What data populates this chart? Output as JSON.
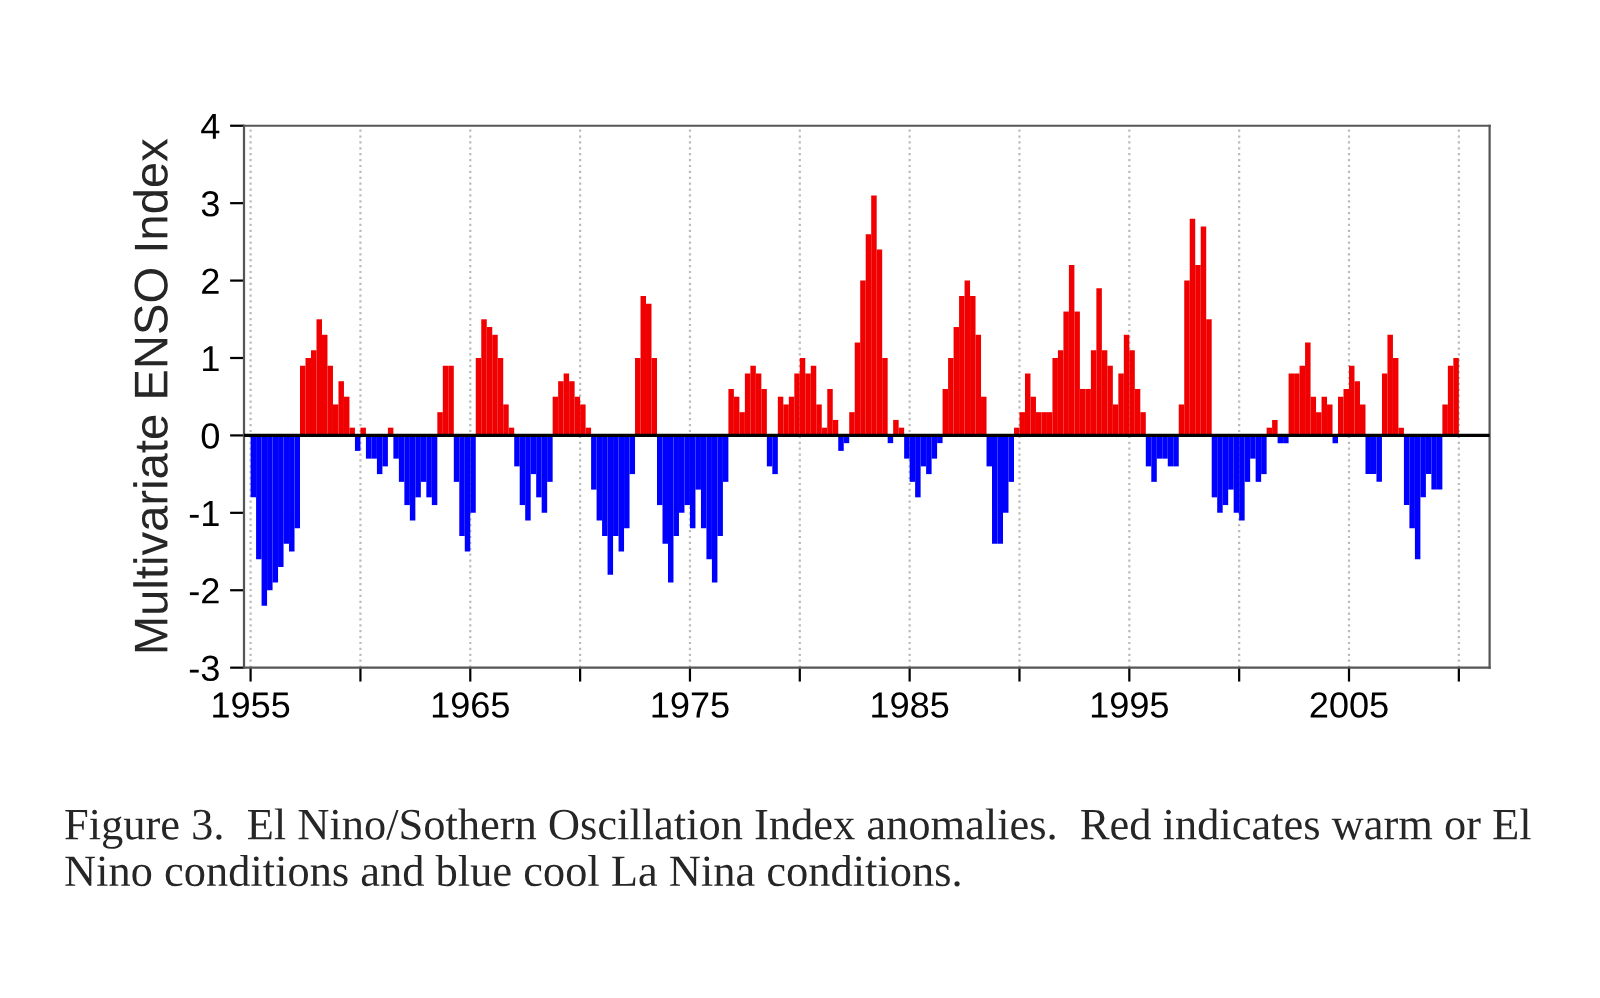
{
  "chart_data": {
    "type": "bar",
    "ylabel": "Multivariate ENSO Index",
    "x": [
      1955,
      1955.25,
      1955.5,
      1955.75,
      1956,
      1956.25,
      1956.5,
      1956.75,
      1957,
      1957.25,
      1957.5,
      1957.75,
      1958,
      1958.25,
      1958.5,
      1958.75,
      1959,
      1959.25,
      1959.5,
      1959.75,
      1960,
      1960.25,
      1960.5,
      1960.75,
      1961,
      1961.25,
      1961.5,
      1961.75,
      1962,
      1962.25,
      1962.5,
      1962.75,
      1963,
      1963.25,
      1963.5,
      1963.75,
      1964,
      1964.25,
      1964.5,
      1964.75,
      1965,
      1965.25,
      1965.5,
      1965.75,
      1966,
      1966.25,
      1966.5,
      1966.75,
      1967,
      1967.25,
      1967.5,
      1967.75,
      1968,
      1968.25,
      1968.5,
      1968.75,
      1969,
      1969.25,
      1969.5,
      1969.75,
      1970,
      1970.25,
      1970.5,
      1970.75,
      1971,
      1971.25,
      1971.5,
      1971.75,
      1972,
      1972.25,
      1972.5,
      1972.75,
      1973,
      1973.25,
      1973.5,
      1973.75,
      1974,
      1974.25,
      1974.5,
      1974.75,
      1975,
      1975.25,
      1975.5,
      1975.75,
      1976,
      1976.25,
      1976.5,
      1976.75,
      1977,
      1977.25,
      1977.5,
      1977.75,
      1978,
      1978.25,
      1978.5,
      1978.75,
      1979,
      1979.25,
      1979.5,
      1979.75,
      1980,
      1980.25,
      1980.5,
      1980.75,
      1981,
      1981.25,
      1981.5,
      1981.75,
      1982,
      1982.25,
      1982.5,
      1982.75,
      1983,
      1983.25,
      1983.5,
      1983.75,
      1984,
      1984.25,
      1984.5,
      1984.75,
      1985,
      1985.25,
      1985.5,
      1985.75,
      1986,
      1986.25,
      1986.5,
      1986.75,
      1987,
      1987.25,
      1987.5,
      1987.75,
      1988,
      1988.25,
      1988.5,
      1988.75,
      1989,
      1989.25,
      1989.5,
      1989.75,
      1990,
      1990.25,
      1990.5,
      1990.75,
      1991,
      1991.25,
      1991.5,
      1991.75,
      1992,
      1992.25,
      1992.5,
      1992.75,
      1993,
      1993.25,
      1993.5,
      1993.75,
      1994,
      1994.25,
      1994.5,
      1994.75,
      1995,
      1995.25,
      1995.5,
      1995.75,
      1996,
      1996.25,
      1996.5,
      1996.75,
      1997,
      1997.25,
      1997.5,
      1997.75,
      1998,
      1998.25,
      1998.5,
      1998.75,
      1999,
      1999.25,
      1999.5,
      1999.75,
      2000,
      2000.25,
      2000.5,
      2000.75,
      2001,
      2001.25,
      2001.5,
      2001.75,
      2002,
      2002.25,
      2002.5,
      2002.75,
      2003,
      2003.25,
      2003.5,
      2003.75,
      2004,
      2004.25,
      2004.5,
      2004.75,
      2005,
      2005.25,
      2005.5,
      2005.75,
      2006,
      2006.25,
      2006.5,
      2006.75,
      2007,
      2007.25,
      2007.5,
      2007.75,
      2008,
      2008.25,
      2008.5,
      2008.75,
      2009,
      2009.25,
      2009.5,
      2009.75
    ],
    "series": [
      {
        "color": "#f00000",
        "values": [
          null,
          null,
          null,
          null,
          null,
          null,
          null,
          null,
          null,
          0.9,
          1.0,
          1.1,
          1.5,
          1.3,
          0.9,
          0.4,
          0.7,
          0.5,
          0.1,
          null,
          0.1,
          null,
          null,
          null,
          null,
          0.1,
          null,
          null,
          null,
          null,
          null,
          null,
          null,
          null,
          0.3,
          0.9,
          0.9,
          null,
          null,
          null,
          null,
          1.0,
          1.5,
          1.4,
          1.3,
          1.0,
          0.4,
          0.1,
          null,
          null,
          null,
          null,
          null,
          null,
          null,
          0.5,
          0.7,
          0.8,
          0.7,
          0.5,
          0.4,
          0.1,
          null,
          null,
          null,
          null,
          null,
          null,
          null,
          null,
          1.0,
          1.8,
          1.7,
          1.0,
          null,
          null,
          null,
          null,
          null,
          null,
          null,
          null,
          null,
          null,
          null,
          null,
          null,
          0.6,
          0.5,
          0.3,
          0.8,
          0.9,
          0.8,
          0.6,
          null,
          null,
          0.5,
          0.4,
          0.5,
          0.8,
          1.0,
          0.8,
          0.9,
          0.4,
          0.1,
          0.6,
          0.2,
          null,
          null,
          0.3,
          1.2,
          2.0,
          2.6,
          3.1,
          2.4,
          1.0,
          null,
          0.2,
          0.1,
          null,
          null,
          null,
          null,
          null,
          null,
          null,
          0.6,
          1.0,
          1.4,
          1.8,
          2.0,
          1.8,
          1.3,
          0.5,
          null,
          null,
          null,
          null,
          null,
          0.1,
          0.3,
          0.8,
          0.5,
          0.3,
          0.3,
          0.3,
          1.0,
          1.1,
          1.6,
          2.2,
          1.6,
          0.6,
          0.6,
          1.1,
          1.9,
          1.1,
          0.9,
          0.4,
          0.8,
          1.3,
          1.1,
          0.6,
          0.3,
          null,
          null,
          null,
          null,
          null,
          null,
          0.4,
          2.0,
          2.8,
          2.2,
          2.7,
          1.5,
          null,
          null,
          null,
          null,
          null,
          null,
          null,
          null,
          null,
          null,
          0.1,
          0.2,
          null,
          null,
          0.8,
          0.8,
          0.9,
          1.2,
          0.5,
          0.3,
          0.5,
          0.4,
          null,
          0.5,
          0.6,
          0.9,
          0.7,
          0.4,
          null,
          null,
          null,
          0.8,
          1.3,
          1.0,
          0.1,
          null,
          null,
          null,
          null,
          null,
          null,
          null,
          0.4,
          0.9,
          1.0
        ]
      },
      {
        "color": "#0000ff",
        "values": [
          -0.8,
          -1.6,
          -2.2,
          -2.0,
          -1.9,
          -1.7,
          -1.4,
          -1.5,
          -1.2,
          null,
          null,
          null,
          null,
          null,
          null,
          null,
          null,
          null,
          null,
          -0.2,
          null,
          -0.3,
          -0.3,
          -0.5,
          -0.4,
          null,
          -0.3,
          -0.6,
          -0.9,
          -1.1,
          -0.8,
          -0.6,
          -0.8,
          -0.9,
          null,
          null,
          null,
          -0.6,
          -1.3,
          -1.5,
          -1.0,
          null,
          null,
          null,
          null,
          null,
          null,
          null,
          -0.4,
          -0.9,
          -1.1,
          -0.5,
          -0.8,
          -1.0,
          -0.6,
          null,
          null,
          null,
          null,
          null,
          null,
          null,
          -0.7,
          -1.1,
          -1.3,
          -1.8,
          -1.3,
          -1.5,
          -1.2,
          -0.5,
          null,
          null,
          null,
          null,
          -0.9,
          -1.4,
          -1.9,
          -1.3,
          -1.0,
          -0.9,
          -1.2,
          -0.7,
          -1.2,
          -1.6,
          -1.9,
          -1.3,
          -0.6,
          null,
          null,
          null,
          null,
          null,
          null,
          null,
          -0.4,
          -0.5,
          null,
          null,
          null,
          null,
          null,
          null,
          null,
          null,
          null,
          null,
          null,
          -0.2,
          -0.1,
          null,
          null,
          null,
          null,
          null,
          null,
          null,
          -0.1,
          null,
          null,
          -0.3,
          -0.6,
          -0.8,
          -0.4,
          -0.5,
          -0.3,
          -0.1,
          null,
          null,
          null,
          null,
          null,
          null,
          null,
          null,
          -0.4,
          -1.4,
          -1.4,
          -1.0,
          -0.6,
          null,
          null,
          null,
          null,
          null,
          null,
          null,
          null,
          null,
          null,
          null,
          null,
          null,
          null,
          null,
          null,
          null,
          null,
          null,
          null,
          null,
          null,
          null,
          null,
          -0.4,
          -0.6,
          -0.3,
          -0.3,
          -0.4,
          -0.4,
          null,
          null,
          null,
          null,
          null,
          null,
          -0.8,
          -1.0,
          -0.9,
          -0.7,
          -1.0,
          -1.1,
          -0.6,
          -0.3,
          -0.6,
          -0.5,
          null,
          null,
          -0.1,
          -0.1,
          null,
          null,
          null,
          null,
          null,
          null,
          null,
          null,
          -0.1,
          null,
          null,
          null,
          null,
          null,
          -0.5,
          -0.5,
          -0.6,
          null,
          null,
          null,
          null,
          -0.9,
          -1.2,
          -1.6,
          -0.8,
          -0.5,
          -0.7,
          -0.7,
          null,
          null,
          null
        ]
      }
    ],
    "xlim": [
      1954.7,
      2011.4
    ],
    "xticks": [
      1955,
      {
        "value": 1960,
        "label": null
      },
      1965,
      {
        "value": 1970,
        "label": null
      },
      1975,
      {
        "value": 1980,
        "label": null
      },
      1985,
      {
        "value": 1990,
        "label": null
      },
      1995,
      {
        "value": 2000,
        "label": null
      },
      2005,
      {
        "value": 2010,
        "label": null
      }
    ],
    "ylim": [
      -3,
      4
    ],
    "yticks": [
      -3,
      -2,
      -1,
      0,
      1,
      2,
      3,
      4
    ],
    "grid": "x",
    "ref_lines": [
      {
        "axis": "y",
        "value": 0,
        "color": "#000000"
      }
    ],
    "annotations": [
      "Figure 3.  El Nino/Sothern Oscillation Index anomalies.  Red indicates warm or El Nino conditions and blue cool La Nina conditions."
    ]
  }
}
